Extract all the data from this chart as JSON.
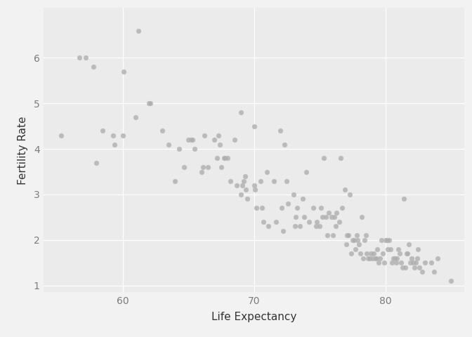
{
  "title": "",
  "xlabel": "Life Expectancy",
  "ylabel": "Fertility Rate",
  "background_color": "#EBEBEB",
  "grid_color": "#FFFFFF",
  "point_color": "#AAAAAA",
  "point_edge_color": "#BBBBBB",
  "point_alpha": 0.75,
  "point_size": 22,
  "xlim": [
    54,
    86
  ],
  "ylim": [
    0.85,
    7.1
  ],
  "xticks": [
    60,
    70,
    80
  ],
  "yticks": [
    1,
    2,
    3,
    4,
    5,
    6
  ],
  "xy_data": [
    [
      55.3,
      4.3
    ],
    [
      56.7,
      6.0
    ],
    [
      57.2,
      6.0
    ],
    [
      57.8,
      5.8
    ],
    [
      58.0,
      3.7
    ],
    [
      58.5,
      4.4
    ],
    [
      59.3,
      4.3
    ],
    [
      59.4,
      4.1
    ],
    [
      60.0,
      4.3
    ],
    [
      60.1,
      5.7
    ],
    [
      61.0,
      4.7
    ],
    [
      61.2,
      6.6
    ],
    [
      62.0,
      5.0
    ],
    [
      62.1,
      5.0
    ],
    [
      63.0,
      4.4
    ],
    [
      63.5,
      4.1
    ],
    [
      64.0,
      3.3
    ],
    [
      64.3,
      4.0
    ],
    [
      64.7,
      3.6
    ],
    [
      65.0,
      4.2
    ],
    [
      65.2,
      4.2
    ],
    [
      65.3,
      4.2
    ],
    [
      65.5,
      4.0
    ],
    [
      66.0,
      3.5
    ],
    [
      66.1,
      3.6
    ],
    [
      66.2,
      4.3
    ],
    [
      66.5,
      3.6
    ],
    [
      67.0,
      4.2
    ],
    [
      67.2,
      3.8
    ],
    [
      67.3,
      4.3
    ],
    [
      67.4,
      4.1
    ],
    [
      67.5,
      3.6
    ],
    [
      67.7,
      3.8
    ],
    [
      67.8,
      3.8
    ],
    [
      68.0,
      3.8
    ],
    [
      68.2,
      3.3
    ],
    [
      68.5,
      4.2
    ],
    [
      68.7,
      3.2
    ],
    [
      69.0,
      3.0
    ],
    [
      69.0,
      4.8
    ],
    [
      69.1,
      3.2
    ],
    [
      69.2,
      3.3
    ],
    [
      69.3,
      3.4
    ],
    [
      69.4,
      3.1
    ],
    [
      69.5,
      2.9
    ],
    [
      70.0,
      4.5
    ],
    [
      70.0,
      3.2
    ],
    [
      70.1,
      3.1
    ],
    [
      70.2,
      2.7
    ],
    [
      70.5,
      3.3
    ],
    [
      70.6,
      2.7
    ],
    [
      70.7,
      2.4
    ],
    [
      71.0,
      3.5
    ],
    [
      71.1,
      2.3
    ],
    [
      71.5,
      3.3
    ],
    [
      71.7,
      2.4
    ],
    [
      72.0,
      4.4
    ],
    [
      72.1,
      2.7
    ],
    [
      72.2,
      2.2
    ],
    [
      72.3,
      4.1
    ],
    [
      72.5,
      3.3
    ],
    [
      72.6,
      2.8
    ],
    [
      73.0,
      3.0
    ],
    [
      73.1,
      2.3
    ],
    [
      73.2,
      2.5
    ],
    [
      73.3,
      2.7
    ],
    [
      73.5,
      2.3
    ],
    [
      73.7,
      2.9
    ],
    [
      73.8,
      2.5
    ],
    [
      74.0,
      3.5
    ],
    [
      74.2,
      2.4
    ],
    [
      74.5,
      2.7
    ],
    [
      74.7,
      2.3
    ],
    [
      74.8,
      2.4
    ],
    [
      75.0,
      2.3
    ],
    [
      75.1,
      2.7
    ],
    [
      75.2,
      2.5
    ],
    [
      75.3,
      3.8
    ],
    [
      75.5,
      2.5
    ],
    [
      75.6,
      2.1
    ],
    [
      75.7,
      2.6
    ],
    [
      75.9,
      2.5
    ],
    [
      76.0,
      2.1
    ],
    [
      76.1,
      2.5
    ],
    [
      76.2,
      2.3
    ],
    [
      76.3,
      2.6
    ],
    [
      76.5,
      2.4
    ],
    [
      76.6,
      3.8
    ],
    [
      76.7,
      2.7
    ],
    [
      76.9,
      3.1
    ],
    [
      77.0,
      1.9
    ],
    [
      77.1,
      2.1
    ],
    [
      77.2,
      2.1
    ],
    [
      77.3,
      3.0
    ],
    [
      77.4,
      1.7
    ],
    [
      77.5,
      2.0
    ],
    [
      77.6,
      2.0
    ],
    [
      77.7,
      1.8
    ],
    [
      77.8,
      2.1
    ],
    [
      77.9,
      2.0
    ],
    [
      78.0,
      1.9
    ],
    [
      78.1,
      1.7
    ],
    [
      78.2,
      2.5
    ],
    [
      78.3,
      1.6
    ],
    [
      78.4,
      2.0
    ],
    [
      78.5,
      2.1
    ],
    [
      78.6,
      1.7
    ],
    [
      78.7,
      1.6
    ],
    [
      78.8,
      1.6
    ],
    [
      78.9,
      1.7
    ],
    [
      79.0,
      1.6
    ],
    [
      79.1,
      1.7
    ],
    [
      79.2,
      1.6
    ],
    [
      79.3,
      1.6
    ],
    [
      79.4,
      1.8
    ],
    [
      79.5,
      1.5
    ],
    [
      79.6,
      1.6
    ],
    [
      79.7,
      2.0
    ],
    [
      79.8,
      1.7
    ],
    [
      79.9,
      1.5
    ],
    [
      80.0,
      2.0
    ],
    [
      80.1,
      2.0
    ],
    [
      80.2,
      1.8
    ],
    [
      80.3,
      2.0
    ],
    [
      80.4,
      1.8
    ],
    [
      80.5,
      1.5
    ],
    [
      80.6,
      1.6
    ],
    [
      80.7,
      1.6
    ],
    [
      80.8,
      1.5
    ],
    [
      80.9,
      1.6
    ],
    [
      81.0,
      1.8
    ],
    [
      81.1,
      1.7
    ],
    [
      81.2,
      1.5
    ],
    [
      81.3,
      1.4
    ],
    [
      81.4,
      2.9
    ],
    [
      81.5,
      1.4
    ],
    [
      81.6,
      1.7
    ],
    [
      81.7,
      1.7
    ],
    [
      81.8,
      1.9
    ],
    [
      81.9,
      1.5
    ],
    [
      82.0,
      1.6
    ],
    [
      82.1,
      1.5
    ],
    [
      82.2,
      1.4
    ],
    [
      82.3,
      1.5
    ],
    [
      82.4,
      1.6
    ],
    [
      82.5,
      1.8
    ],
    [
      82.6,
      1.4
    ],
    [
      82.8,
      1.3
    ],
    [
      83.0,
      1.5
    ],
    [
      83.5,
      1.5
    ],
    [
      83.7,
      1.3
    ],
    [
      84.0,
      1.6
    ],
    [
      85.0,
      1.1
    ]
  ]
}
